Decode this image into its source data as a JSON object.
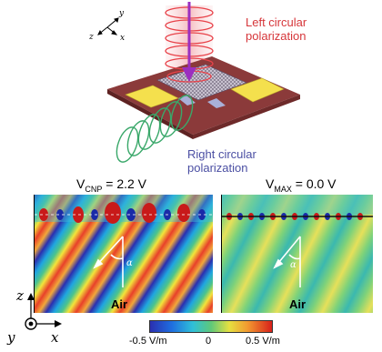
{
  "top_axes": {
    "y": "y",
    "z": "z",
    "x": "x"
  },
  "labels": {
    "left_line1": "Left circular",
    "left_line2": "polarization",
    "right_line1": "Right circular",
    "right_line2": "polarization"
  },
  "panels": {
    "left": {
      "var": "V",
      "sub": "CNP",
      "value": " = 2.2 V",
      "medium": "Air",
      "angle": "α"
    },
    "right": {
      "var": "V",
      "sub": "MAX",
      "value": " = 0.0 V",
      "medium": "Air",
      "angle": "α"
    }
  },
  "bottom_axes": {
    "z": "z",
    "y": "y",
    "x": "x"
  },
  "colorbar": {
    "min_label": "-0.5 V/m",
    "mid_label": "0",
    "max_label": "0.5 V/m"
  },
  "colors": {
    "red_wave": "#e8434a",
    "green_wave": "#3aa86a",
    "arrow": "#9b2fc0",
    "board": "#8b3a3a",
    "electrode": "#f4e04d"
  }
}
